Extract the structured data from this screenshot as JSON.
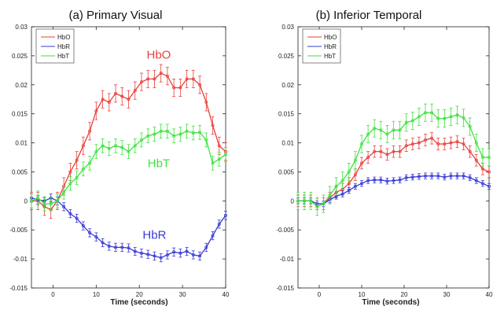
{
  "chart_data": [
    {
      "type": "line",
      "title": "(a) Primary Visual",
      "xlabel": "Time (seconds)",
      "ylabel": "",
      "xlim": [
        -5,
        40
      ],
      "ylim": [
        -0.015,
        0.03
      ],
      "x_ticks": [
        "0",
        "10",
        "20",
        "30",
        "40"
      ],
      "y_ticks": [
        "-0.015",
        "-0.01",
        "-0.005",
        "0",
        "0.005",
        "0.01",
        "0.015",
        "0.02",
        "0.025",
        "0.03"
      ],
      "grid": false,
      "legend_position": "top-left",
      "x": [
        -5,
        -3.5,
        -2,
        -0.5,
        1,
        2.5,
        4,
        5.5,
        7,
        8.5,
        10,
        11.5,
        13,
        14.5,
        16,
        17.5,
        19,
        20.5,
        22,
        23.5,
        25,
        26.5,
        28,
        29.5,
        31,
        32.5,
        34,
        35.5,
        37,
        38.5,
        40
      ],
      "series": [
        {
          "name": "HbO",
          "color": "#e8413c",
          "errorbar": 0.0015,
          "values": [
            0,
            0,
            -0.001,
            -0.0015,
            0,
            0.0025,
            0.005,
            0.007,
            0.0095,
            0.012,
            0.0155,
            0.0175,
            0.017,
            0.0185,
            0.018,
            0.0175,
            0.019,
            0.0205,
            0.021,
            0.021,
            0.022,
            0.0215,
            0.0195,
            0.0195,
            0.021,
            0.021,
            0.02,
            0.017,
            0.013,
            0.0095,
            0.0085
          ]
        },
        {
          "name": "HbR",
          "color": "#3a3ad6",
          "errorbar": 0.0007,
          "values": [
            0.0005,
            0.0002,
            0,
            0.0005,
            0,
            -0.001,
            -0.0022,
            -0.003,
            -0.0043,
            -0.0055,
            -0.0062,
            -0.0072,
            -0.0078,
            -0.008,
            -0.008,
            -0.0081,
            -0.0087,
            -0.009,
            -0.0092,
            -0.0095,
            -0.0098,
            -0.0093,
            -0.0088,
            -0.009,
            -0.0087,
            -0.0093,
            -0.0095,
            -0.008,
            -0.006,
            -0.004,
            -0.0025
          ]
        },
        {
          "name": "HbT",
          "color": "#3ee23e",
          "errorbar": 0.0012,
          "values": [
            0,
            0.0005,
            -0.0005,
            -0.0005,
            0,
            0.0015,
            0.003,
            0.004,
            0.0055,
            0.0065,
            0.0085,
            0.0095,
            0.009,
            0.0095,
            0.0092,
            0.0085,
            0.0095,
            0.0105,
            0.0112,
            0.0115,
            0.012,
            0.012,
            0.0112,
            0.0115,
            0.012,
            0.0117,
            0.0118,
            0.0105,
            0.0065,
            0.0072,
            0.008
          ]
        }
      ],
      "annotations": [
        {
          "text": "HbO",
          "color": "#e8413c",
          "x": 24.5,
          "y": 0.0245
        },
        {
          "text": "HbT",
          "color": "#3ee23e",
          "x": 24.5,
          "y": 0.0058
        },
        {
          "text": "HbR",
          "color": "#3a3ad6",
          "x": 23.5,
          "y": -0.0065
        }
      ]
    },
    {
      "type": "line",
      "title": "(b) Inferior Temporal",
      "xlabel": "Time (seconds)",
      "ylabel": "",
      "xlim": [
        -5,
        40
      ],
      "ylim": [
        -0.015,
        0.03
      ],
      "x_ticks": [
        "0",
        "10",
        "20",
        "30",
        "40"
      ],
      "y_ticks": [
        "-0.015",
        "-0.01",
        "-0.005",
        "0",
        "0.005",
        "0.01",
        "0.015",
        "0.02",
        "0.025",
        "0.03"
      ],
      "grid": false,
      "legend_position": "top-left",
      "x": [
        -5,
        -3.5,
        -2,
        -0.5,
        1,
        2.5,
        4,
        5.5,
        7,
        8.5,
        10,
        11.5,
        13,
        14.5,
        16,
        17.5,
        19,
        20.5,
        22,
        23.5,
        25,
        26.5,
        28,
        29.5,
        31,
        32.5,
        34,
        35.5,
        37,
        38.5,
        40
      ],
      "series": [
        {
          "name": "HbO",
          "color": "#e8413c",
          "errorbar": 0.001,
          "values": [
            0,
            0,
            0,
            -0.0005,
            -0.0005,
            0.0005,
            0.0015,
            0.002,
            0.003,
            0.0045,
            0.0065,
            0.0075,
            0.0085,
            0.0085,
            0.008,
            0.0085,
            0.0085,
            0.0095,
            0.0098,
            0.01,
            0.0105,
            0.0108,
            0.0098,
            0.0098,
            0.01,
            0.0102,
            0.0098,
            0.0085,
            0.007,
            0.0055,
            0.005
          ]
        },
        {
          "name": "HbR",
          "color": "#3a3ad6",
          "errorbar": 0.0005,
          "values": [
            0,
            0,
            0,
            -0.0005,
            -0.0005,
            0.0002,
            0.0008,
            0.0012,
            0.0018,
            0.0025,
            0.003,
            0.0035,
            0.0036,
            0.0036,
            0.0034,
            0.0035,
            0.0036,
            0.004,
            0.0041,
            0.0042,
            0.0043,
            0.0043,
            0.0043,
            0.0041,
            0.0043,
            0.0043,
            0.0043,
            0.004,
            0.0035,
            0.003,
            0.0025
          ]
        },
        {
          "name": "HbT",
          "color": "#3ee23e",
          "errorbar": 0.0015,
          "values": [
            0,
            0,
            0,
            -0.001,
            -0.0005,
            0.001,
            0.0025,
            0.0035,
            0.005,
            0.007,
            0.0098,
            0.0115,
            0.0125,
            0.0122,
            0.0115,
            0.0122,
            0.0122,
            0.0135,
            0.0138,
            0.0145,
            0.0152,
            0.0152,
            0.0142,
            0.0142,
            0.0145,
            0.0148,
            0.0143,
            0.0128,
            0.01,
            0.0075,
            0.0075
          ]
        }
      ],
      "annotations": []
    }
  ]
}
